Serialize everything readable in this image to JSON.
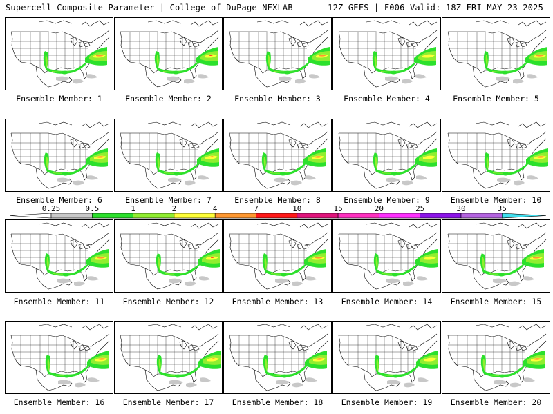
{
  "header": {
    "left": "Supercell Composite Parameter | College of DuPage NEXLAB",
    "right": "12Z GEFS | F006 Valid: 18Z FRI MAY 23 2025"
  },
  "label_prefix": "Ensemble Member: ",
  "panels": [
    {
      "member": "1"
    },
    {
      "member": "2"
    },
    {
      "member": "3"
    },
    {
      "member": "4"
    },
    {
      "member": "5"
    },
    {
      "member": "6"
    },
    {
      "member": "7"
    },
    {
      "member": "8"
    },
    {
      "member": "9"
    },
    {
      "member": "10"
    },
    {
      "member": "11"
    },
    {
      "member": "12"
    },
    {
      "member": "13"
    },
    {
      "member": "14"
    },
    {
      "member": "15"
    },
    {
      "member": "16"
    },
    {
      "member": "17"
    },
    {
      "member": "18"
    },
    {
      "member": "19"
    },
    {
      "member": "20"
    }
  ],
  "colorbar": {
    "under_color": "#ffffff",
    "over_color": "#40e0f0",
    "bins": [
      {
        "label": "0.25",
        "color": "#c8c8c8"
      },
      {
        "label": "0.5",
        "color": "#2ce02c"
      },
      {
        "label": "1",
        "color": "#90ee30"
      },
      {
        "label": "2",
        "color": "#ffff38"
      },
      {
        "label": "4",
        "color": "#ff9830"
      },
      {
        "label": "7",
        "color": "#ff1818"
      },
      {
        "label": "10",
        "color": "#e0147c"
      },
      {
        "label": "15",
        "color": "#ff30c0"
      },
      {
        "label": "20",
        "color": "#ff30ff"
      },
      {
        "label": "25",
        "color": "#8c14e8"
      },
      {
        "label": "30",
        "color": "#b464e0"
      },
      {
        "label": "35",
        "color": null
      }
    ]
  },
  "map_colors": {
    "gray": "#c8c8c8",
    "green": "#2ce02c",
    "lime": "#90ee30",
    "yellow": "#ffff38",
    "orange": "#ff9830",
    "red": "#ff1818",
    "lines": "#000000"
  }
}
